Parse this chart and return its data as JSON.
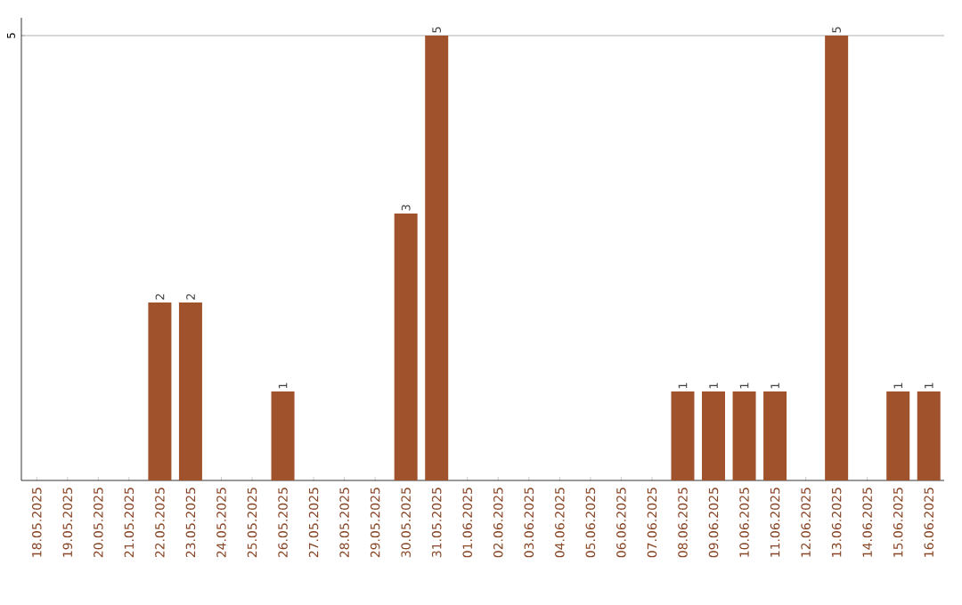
{
  "chart_data": {
    "type": "bar",
    "categories": [
      "18.05.2025",
      "19.05.2025",
      "20.05.2025",
      "21.05.2025",
      "22.05.2025",
      "23.05.2025",
      "24.05.2025",
      "25.05.2025",
      "26.05.2025",
      "27.05.2025",
      "28.05.2025",
      "29.05.2025",
      "30.05.2025",
      "31.05.2025",
      "01.06.2025",
      "02.06.2025",
      "03.06.2025",
      "04.06.2025",
      "05.06.2025",
      "06.06.2025",
      "07.06.2025",
      "08.06.2025",
      "09.06.2025",
      "10.06.2025",
      "11.06.2025",
      "12.06.2025",
      "13.06.2025",
      "14.06.2025",
      "15.06.2025",
      "16.06.2025"
    ],
    "values": [
      0,
      0,
      0,
      0,
      2,
      2,
      0,
      0,
      1,
      0,
      0,
      0,
      3,
      5,
      0,
      0,
      0,
      0,
      0,
      0,
      0,
      1,
      1,
      1,
      1,
      0,
      5,
      0,
      1,
      1
    ],
    "value_labels": [
      null,
      null,
      null,
      null,
      "2",
      "2",
      null,
      null,
      "1",
      null,
      null,
      null,
      "3",
      "5",
      null,
      null,
      null,
      null,
      null,
      null,
      null,
      "1",
      "1",
      "1",
      "1",
      null,
      "5",
      null,
      "1",
      "1"
    ],
    "color": "#a0522d",
    "ylim": [
      0,
      5.2
    ],
    "yticks": [
      5
    ],
    "grid": "y"
  }
}
